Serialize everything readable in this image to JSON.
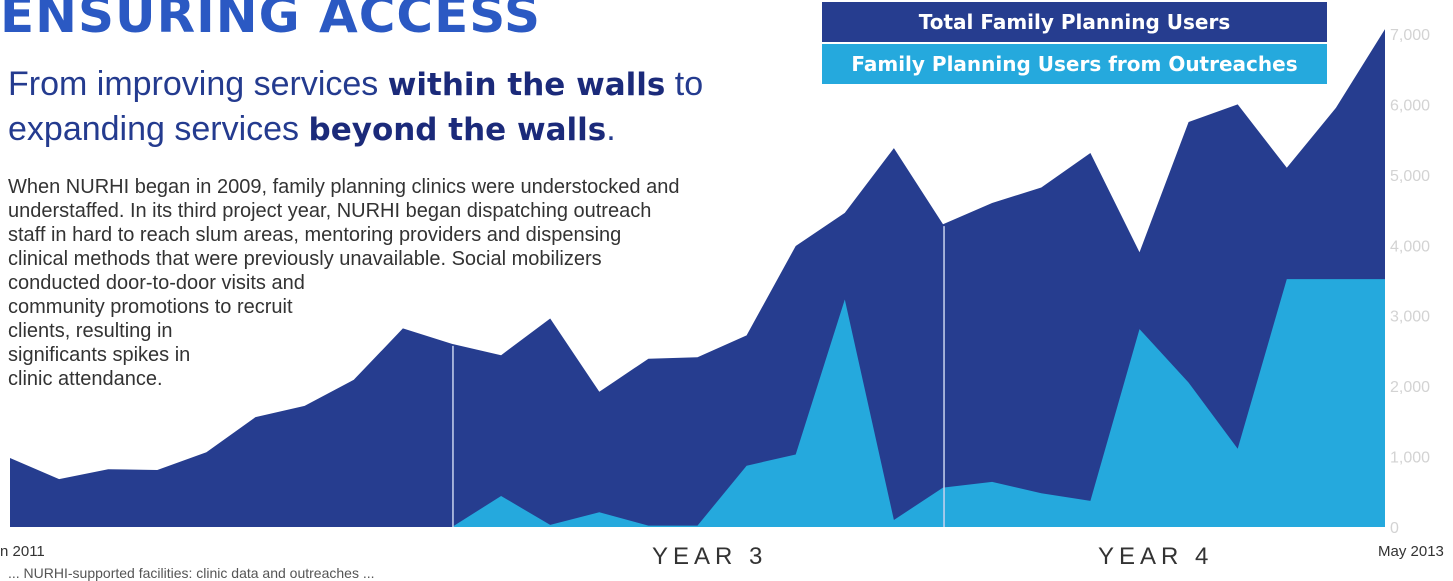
{
  "header": {
    "title": "ENSURING ACCESS",
    "subtitle": {
      "part1": "From improving services ",
      "bold1": "within the walls",
      "part2": " to expanding services ",
      "bold2": "beyond the walls",
      "part3": "."
    }
  },
  "body_lines": [
    "When NURHI began in 2009, family planning clinics were understocked and",
    "understaffed. In its third project year, NURHI began dispatching outreach",
    "staff in hard to reach slum areas, mentoring providers and dispensing",
    "clinical methods that were previously unavailable.  Social mobilizers",
    "conducted door-to-door visits and",
    "community promotions to recruit",
    "clients, resulting in",
    "significants spikes in",
    "clinic attendance."
  ],
  "footer_note": "... NURHI-supported facilities: clinic data and outreaches ...",
  "colors": {
    "total": "#263d8f",
    "outreach": "#25a9dd",
    "divider": "#c8d2ee",
    "axis_text": "#d3d3d3"
  },
  "chart_data": {
    "type": "area",
    "legend": {
      "placement": "top-right",
      "entries": [
        "Total Family Planning Users",
        "Family Planning Users from Outreaches"
      ]
    },
    "x_start_label": "n 2011",
    "x_end_label": "May 2013",
    "year_labels": [
      "YEAR 3",
      "YEAR 4"
    ],
    "ylim": [
      0,
      7000
    ],
    "yticks": [
      0,
      1000,
      2000,
      3000,
      4000,
      5000,
      6000,
      7000
    ],
    "ytick_labels": [
      "0",
      "1,000",
      "2,000",
      "3,000",
      "4,000",
      "5,000",
      "6,000",
      "7,000"
    ],
    "series": [
      {
        "name": "Total Family Planning Users",
        "values": [
          980,
          680,
          820,
          810,
          1060,
          1560,
          1720,
          2090,
          2820,
          2600,
          2440,
          2960,
          1920,
          2390,
          2410,
          2720,
          3990,
          4460,
          5380,
          4300,
          4600,
          4820,
          5310,
          3900,
          5750,
          6000,
          5100,
          5950,
          7070
        ]
      },
      {
        "name": "Family Planning Users from Outreaches",
        "values": [
          0,
          0,
          0,
          0,
          0,
          0,
          0,
          0,
          0,
          0,
          440,
          30,
          210,
          20,
          20,
          870,
          1030,
          3230,
          100,
          560,
          640,
          480,
          370,
          2810,
          2050,
          1110,
          3520,
          3520,
          3520
        ]
      }
    ],
    "divider_after_index": [
      9,
      19
    ]
  }
}
